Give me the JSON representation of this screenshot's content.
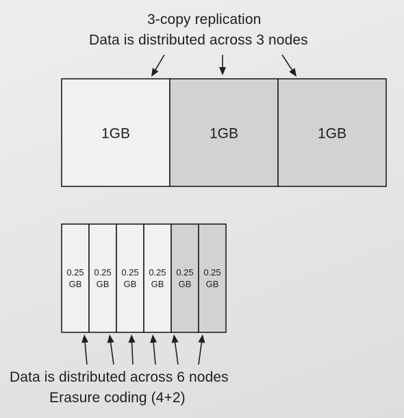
{
  "replication": {
    "caption_line1": "3-copy replication",
    "caption_line2": "Data is distributed across 3 nodes",
    "blocks": [
      {
        "label": "1GB",
        "shaded": false
      },
      {
        "label": "1GB",
        "shaded": true
      },
      {
        "label": "1GB",
        "shaded": true
      }
    ]
  },
  "erasure": {
    "caption_line1": "Data is distributed across 6 nodes",
    "caption_line2": "Erasure coding (4+2)",
    "chunks": [
      {
        "line1": "0.25",
        "line2": "GB",
        "shaded": false
      },
      {
        "line1": "0.25",
        "line2": "GB",
        "shaded": false
      },
      {
        "line1": "0.25",
        "line2": "GB",
        "shaded": false
      },
      {
        "line1": "0.25",
        "line2": "GB",
        "shaded": false
      },
      {
        "line1": "0.25",
        "line2": "GB",
        "shaded": true
      },
      {
        "line1": "0.25",
        "line2": "GB",
        "shaded": true
      }
    ]
  },
  "colors": {
    "data_fill": "#f2f1ef",
    "parity_fill": "#d3d2d0",
    "stroke": "#1e1e1e"
  }
}
